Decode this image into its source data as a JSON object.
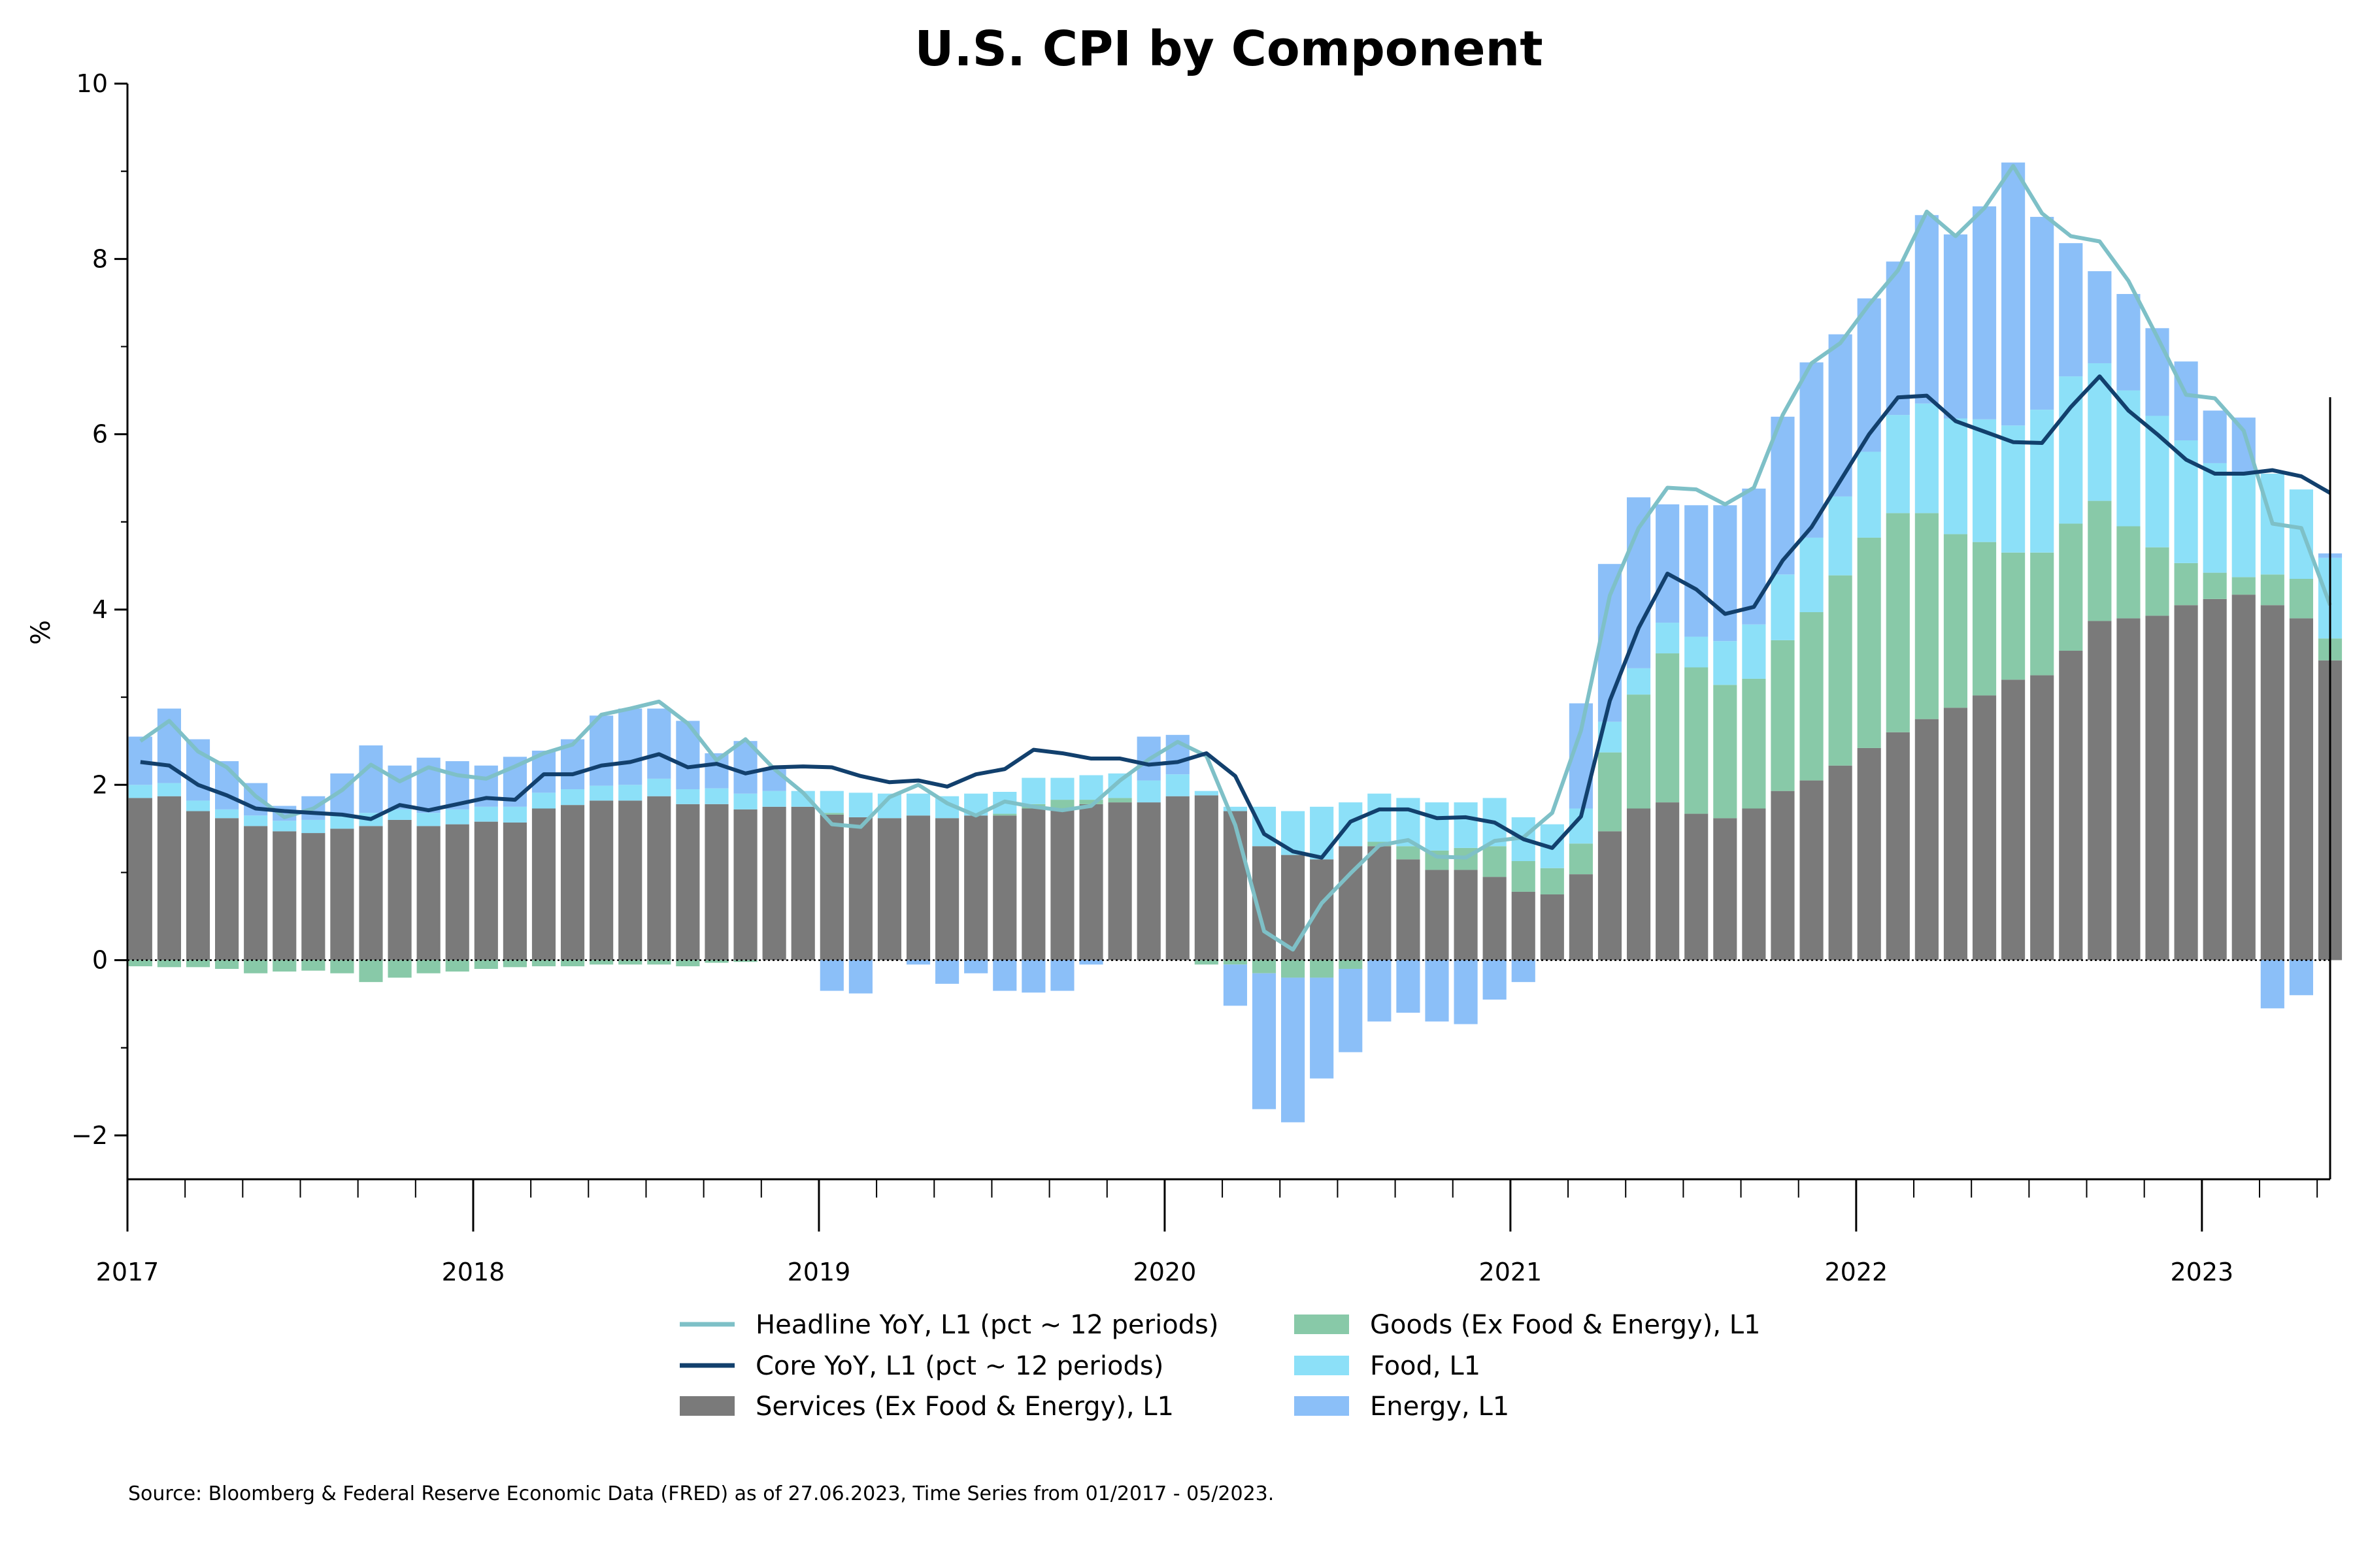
{
  "chart_data": {
    "type": "bar",
    "title": "U.S. CPI by Component",
    "xlabel": "",
    "ylabel": "%",
    "ylim": [
      -2.5,
      10
    ],
    "yticks": [
      -2,
      0,
      2,
      4,
      6,
      8,
      10
    ],
    "ytick_labels": [
      "−2",
      "0",
      "2",
      "4",
      "6",
      "8",
      "10"
    ],
    "x_start": "2017-01",
    "x_end": "2023-05",
    "year_ticks": [
      "2017",
      "2018",
      "2019",
      "2020",
      "2021",
      "2022",
      "2023"
    ],
    "grid": false,
    "legend_position": "bottom-center",
    "months": [
      "2017-01",
      "2017-02",
      "2017-03",
      "2017-04",
      "2017-05",
      "2017-06",
      "2017-07",
      "2017-08",
      "2017-09",
      "2017-10",
      "2017-11",
      "2017-12",
      "2018-01",
      "2018-02",
      "2018-03",
      "2018-04",
      "2018-05",
      "2018-06",
      "2018-07",
      "2018-08",
      "2018-09",
      "2018-10",
      "2018-11",
      "2018-12",
      "2019-01",
      "2019-02",
      "2019-03",
      "2019-04",
      "2019-05",
      "2019-06",
      "2019-07",
      "2019-08",
      "2019-09",
      "2019-10",
      "2019-11",
      "2019-12",
      "2020-01",
      "2020-02",
      "2020-03",
      "2020-04",
      "2020-05",
      "2020-06",
      "2020-07",
      "2020-08",
      "2020-09",
      "2020-10",
      "2020-11",
      "2020-12",
      "2021-01",
      "2021-02",
      "2021-03",
      "2021-04",
      "2021-05",
      "2021-06",
      "2021-07",
      "2021-08",
      "2021-09",
      "2021-10",
      "2021-11",
      "2021-12",
      "2022-01",
      "2022-02",
      "2022-03",
      "2022-04",
      "2022-05",
      "2022-06",
      "2022-07",
      "2022-08",
      "2022-09",
      "2022-10",
      "2022-11",
      "2022-12",
      "2023-01",
      "2023-02",
      "2023-03",
      "2023-04",
      "2023-05"
    ],
    "series": [
      {
        "name": "Services (Ex Food & Energy), L1",
        "kind": "bar",
        "color": "#7a7a7a",
        "values": [
          1.85,
          1.87,
          1.7,
          1.62,
          1.53,
          1.47,
          1.45,
          1.5,
          1.53,
          1.6,
          1.53,
          1.55,
          1.58,
          1.57,
          1.73,
          1.77,
          1.82,
          1.82,
          1.87,
          1.78,
          1.78,
          1.72,
          1.75,
          1.75,
          1.66,
          1.63,
          1.62,
          1.65,
          1.62,
          1.65,
          1.65,
          1.73,
          1.73,
          1.78,
          1.8,
          1.8,
          1.87,
          1.88,
          1.7,
          1.3,
          1.2,
          1.15,
          1.3,
          1.3,
          1.15,
          1.03,
          1.03,
          0.95,
          0.78,
          0.75,
          0.98,
          1.47,
          1.73,
          1.8,
          1.67,
          1.62,
          1.73,
          1.93,
          2.05,
          2.22,
          2.42,
          2.6,
          2.75,
          2.88,
          3.02,
          3.2,
          3.25,
          3.53,
          3.87,
          3.9,
          3.93,
          4.05,
          4.12,
          4.17,
          4.05,
          3.9,
          3.42
        ]
      },
      {
        "name": "Goods (Ex Food & Energy), L1",
        "kind": "bar",
        "color": "#88c9a8",
        "values": [
          -0.07,
          -0.08,
          -0.08,
          -0.1,
          -0.15,
          -0.13,
          -0.12,
          -0.15,
          -0.25,
          -0.2,
          -0.15,
          -0.13,
          -0.1,
          -0.08,
          -0.07,
          -0.07,
          -0.05,
          -0.05,
          -0.05,
          -0.07,
          -0.03,
          -0.02,
          0.0,
          0.0,
          0.02,
          0.0,
          0.0,
          0.0,
          0.0,
          0.0,
          0.02,
          0.05,
          0.1,
          0.05,
          0.05,
          0.0,
          0.0,
          -0.05,
          -0.05,
          -0.15,
          -0.2,
          -0.2,
          -0.1,
          0.05,
          0.15,
          0.22,
          0.25,
          0.35,
          0.35,
          0.3,
          0.35,
          0.9,
          1.3,
          1.7,
          1.67,
          1.52,
          1.48,
          1.72,
          1.92,
          2.17,
          2.4,
          2.5,
          2.35,
          1.98,
          1.75,
          1.45,
          1.4,
          1.45,
          1.37,
          1.05,
          0.78,
          0.48,
          0.3,
          0.2,
          0.35,
          0.45,
          0.25
        ]
      },
      {
        "name": "Food, L1",
        "kind": "bar",
        "color": "#8ce0f8",
        "values": [
          0.15,
          0.15,
          0.12,
          0.1,
          0.12,
          0.12,
          0.15,
          0.15,
          0.15,
          0.12,
          0.15,
          0.17,
          0.17,
          0.18,
          0.18,
          0.18,
          0.17,
          0.18,
          0.2,
          0.17,
          0.18,
          0.18,
          0.18,
          0.18,
          0.25,
          0.28,
          0.28,
          0.25,
          0.25,
          0.25,
          0.25,
          0.3,
          0.25,
          0.28,
          0.28,
          0.25,
          0.25,
          0.05,
          0.05,
          0.45,
          0.5,
          0.6,
          0.5,
          0.55,
          0.55,
          0.55,
          0.52,
          0.55,
          0.5,
          0.5,
          0.4,
          0.35,
          0.3,
          0.35,
          0.35,
          0.5,
          0.62,
          0.75,
          0.85,
          0.9,
          0.98,
          1.12,
          1.25,
          1.32,
          1.4,
          1.45,
          1.63,
          1.68,
          1.57,
          1.55,
          1.5,
          1.4,
          1.25,
          1.2,
          1.15,
          1.02,
          0.92
        ]
      },
      {
        "name": "Energy, L1",
        "kind": "bar",
        "color": "#8bbff8",
        "values": [
          0.55,
          0.85,
          0.7,
          0.55,
          0.37,
          0.17,
          0.27,
          0.48,
          0.77,
          0.5,
          0.63,
          0.55,
          0.47,
          0.57,
          0.48,
          0.57,
          0.8,
          0.87,
          0.8,
          0.78,
          0.4,
          0.6,
          0.25,
          0.0,
          -0.35,
          -0.38,
          0.0,
          -0.05,
          -0.27,
          -0.15,
          -0.35,
          -0.37,
          -0.35,
          -0.05,
          0.0,
          0.5,
          0.45,
          0.0,
          -0.47,
          -1.55,
          -1.65,
          -1.15,
          -0.95,
          -0.7,
          -0.6,
          -0.7,
          -0.73,
          -0.45,
          -0.25,
          0.0,
          1.2,
          1.8,
          1.95,
          1.35,
          1.5,
          1.55,
          1.55,
          1.8,
          2.0,
          1.85,
          1.75,
          1.75,
          2.15,
          2.1,
          2.43,
          3.0,
          2.2,
          1.52,
          1.05,
          1.1,
          1.0,
          0.9,
          0.6,
          0.62,
          -0.55,
          -0.4,
          0.05
        ]
      },
      {
        "name": "Headline YoY, L1 (pct ~ 12 periods)",
        "kind": "line",
        "color": "#7ec0c7",
        "values": [
          2.5,
          2.73,
          2.38,
          2.2,
          1.87,
          1.63,
          1.73,
          1.94,
          2.23,
          2.04,
          2.2,
          2.11,
          2.07,
          2.21,
          2.36,
          2.46,
          2.8,
          2.87,
          2.95,
          2.7,
          2.28,
          2.52,
          2.18,
          1.91,
          1.55,
          1.52,
          1.86,
          2.0,
          1.79,
          1.65,
          1.81,
          1.75,
          1.71,
          1.76,
          2.05,
          2.29,
          2.49,
          2.33,
          1.54,
          0.33,
          0.12,
          0.65,
          0.99,
          1.31,
          1.37,
          1.18,
          1.17,
          1.36,
          1.4,
          1.68,
          2.62,
          4.16,
          4.93,
          5.39,
          5.37,
          5.2,
          5.39,
          6.22,
          6.81,
          7.04,
          7.48,
          7.87,
          8.54,
          8.26,
          8.58,
          9.06,
          8.52,
          8.26,
          8.2,
          7.75,
          7.11,
          6.45,
          6.41,
          6.04,
          4.98,
          4.93,
          4.05
        ]
      },
      {
        "name": "Core YoY, L1 (pct ~ 12 periods)",
        "kind": "line",
        "color": "#12406d",
        "values": [
          2.26,
          2.22,
          2.0,
          1.88,
          1.73,
          1.7,
          1.68,
          1.66,
          1.61,
          1.77,
          1.71,
          1.78,
          1.85,
          1.83,
          2.12,
          2.12,
          2.22,
          2.26,
          2.35,
          2.2,
          2.24,
          2.13,
          2.2,
          2.21,
          2.2,
          2.1,
          2.03,
          2.05,
          1.98,
          2.12,
          2.18,
          2.4,
          2.36,
          2.3,
          2.3,
          2.23,
          2.26,
          2.36,
          2.1,
          1.44,
          1.24,
          1.17,
          1.58,
          1.72,
          1.72,
          1.62,
          1.63,
          1.57,
          1.38,
          1.28,
          1.64,
          2.96,
          3.79,
          4.41,
          4.23,
          3.95,
          4.03,
          4.56,
          4.94,
          5.47,
          6.0,
          6.42,
          6.44,
          6.15,
          6.03,
          5.91,
          5.9,
          6.31,
          6.66,
          6.27,
          6.0,
          5.71,
          5.55,
          5.55,
          5.59,
          5.52,
          5.33
        ]
      }
    ]
  },
  "legend": {
    "items": [
      {
        "label": "Headline YoY, L1 (pct ~ 12 periods)",
        "swatch": "line",
        "color": "#7ec0c7"
      },
      {
        "label": "Core YoY, L1 (pct ~ 12 periods)",
        "swatch": "line",
        "color": "#12406d"
      },
      {
        "label": "Services (Ex Food & Energy), L1",
        "swatch": "box",
        "color": "#7a7a7a"
      },
      {
        "label": "Goods (Ex Food & Energy), L1",
        "swatch": "box",
        "color": "#88c9a8"
      },
      {
        "label": "Food, L1",
        "swatch": "box",
        "color": "#8ce0f8"
      },
      {
        "label": "Energy, L1",
        "swatch": "box",
        "color": "#8bbff8"
      }
    ]
  },
  "source_note": "Source: Bloomberg & Federal Reserve Economic Data (FRED) as of 27.06.2023, Time Series from 01/2017 - 05/2023."
}
